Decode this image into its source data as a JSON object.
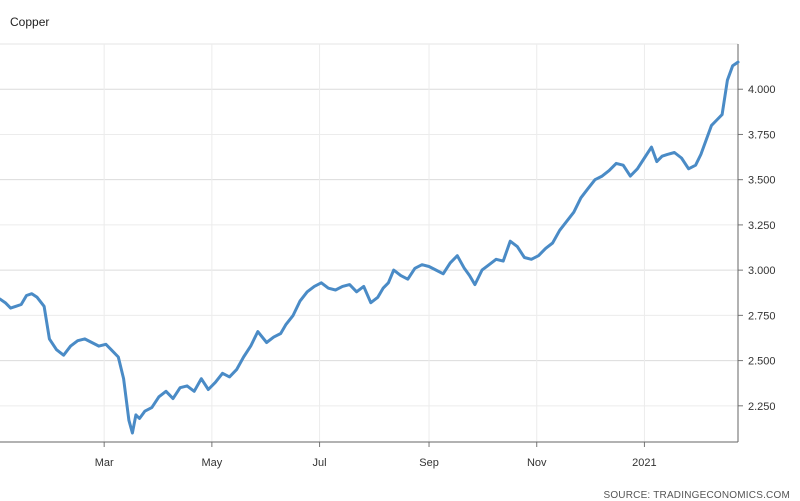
{
  "chart_data": {
    "type": "line",
    "title": "Copper",
    "source": "SOURCE: TRADINGECONOMICS.COM",
    "xlabel": "",
    "ylabel": "",
    "ylim": [
      2.05,
      4.25
    ],
    "yticks": [
      "2.250",
      "2.500",
      "2.750",
      "3.000",
      "3.250",
      "3.500",
      "3.750",
      "4.000"
    ],
    "x_tick_labels": [
      "Mar",
      "May",
      "Jul",
      "Sep",
      "Nov",
      "2021"
    ],
    "x_tick_dates": [
      "2020-03-01",
      "2020-05-01",
      "2020-07-01",
      "2020-09-01",
      "2020-11-01",
      "2021-01-01"
    ],
    "xlim": [
      "2020-01-02",
      "2021-02-23"
    ],
    "grid": true,
    "line_color": "#4a8bc6",
    "series": [
      {
        "x": [
          "2020-01-02",
          "2020-01-05",
          "2020-01-08",
          "2020-01-11",
          "2020-01-14",
          "2020-01-17",
          "2020-01-20",
          "2020-01-23",
          "2020-01-27",
          "2020-01-30",
          "2020-02-03",
          "2020-02-07",
          "2020-02-11",
          "2020-02-15",
          "2020-02-19",
          "2020-02-23",
          "2020-02-27",
          "2020-03-02",
          "2020-03-05",
          "2020-03-09",
          "2020-03-12",
          "2020-03-15",
          "2020-03-17",
          "2020-03-19",
          "2020-03-21",
          "2020-03-24",
          "2020-03-28",
          "2020-04-01",
          "2020-04-05",
          "2020-04-09",
          "2020-04-13",
          "2020-04-17",
          "2020-04-21",
          "2020-04-25",
          "2020-04-29",
          "2020-05-03",
          "2020-05-07",
          "2020-05-11",
          "2020-05-15",
          "2020-05-19",
          "2020-05-23",
          "2020-05-27",
          "2020-06-01",
          "2020-06-05",
          "2020-06-09",
          "2020-06-12",
          "2020-06-16",
          "2020-06-20",
          "2020-06-24",
          "2020-06-28",
          "2020-07-02",
          "2020-07-06",
          "2020-07-10",
          "2020-07-14",
          "2020-07-18",
          "2020-07-22",
          "2020-07-26",
          "2020-07-30",
          "2020-08-03",
          "2020-08-06",
          "2020-08-09",
          "2020-08-12",
          "2020-08-16",
          "2020-08-20",
          "2020-08-24",
          "2020-08-28",
          "2020-09-01",
          "2020-09-05",
          "2020-09-09",
          "2020-09-13",
          "2020-09-17",
          "2020-09-21",
          "2020-09-24",
          "2020-09-27",
          "2020-10-01",
          "2020-10-05",
          "2020-10-09",
          "2020-10-13",
          "2020-10-17",
          "2020-10-21",
          "2020-10-25",
          "2020-10-29",
          "2020-11-02",
          "2020-11-06",
          "2020-11-10",
          "2020-11-14",
          "2020-11-18",
          "2020-11-22",
          "2020-11-26",
          "2020-11-30",
          "2020-12-04",
          "2020-12-08",
          "2020-12-12",
          "2020-12-16",
          "2020-12-20",
          "2020-12-24",
          "2020-12-28",
          "2021-01-01",
          "2021-01-05",
          "2021-01-08",
          "2021-01-11",
          "2021-01-14",
          "2021-01-18",
          "2021-01-22",
          "2021-01-26",
          "2021-01-30",
          "2021-02-02",
          "2021-02-05",
          "2021-02-08",
          "2021-02-11",
          "2021-02-14",
          "2021-02-17",
          "2021-02-20",
          "2021-02-23"
        ],
        "y": [
          2.84,
          2.82,
          2.79,
          2.8,
          2.81,
          2.86,
          2.87,
          2.85,
          2.8,
          2.62,
          2.56,
          2.53,
          2.58,
          2.61,
          2.62,
          2.6,
          2.58,
          2.59,
          2.56,
          2.52,
          2.4,
          2.17,
          2.1,
          2.2,
          2.18,
          2.22,
          2.24,
          2.3,
          2.33,
          2.29,
          2.35,
          2.36,
          2.33,
          2.4,
          2.34,
          2.38,
          2.43,
          2.41,
          2.45,
          2.52,
          2.58,
          2.66,
          2.6,
          2.63,
          2.65,
          2.7,
          2.75,
          2.83,
          2.88,
          2.91,
          2.93,
          2.9,
          2.89,
          2.91,
          2.92,
          2.88,
          2.91,
          2.82,
          2.85,
          2.9,
          2.93,
          3.0,
          2.97,
          2.95,
          3.01,
          3.03,
          3.02,
          3.0,
          2.98,
          3.04,
          3.08,
          3.01,
          2.97,
          2.92,
          3.0,
          3.03,
          3.06,
          3.05,
          3.16,
          3.13,
          3.07,
          3.06,
          3.08,
          3.12,
          3.15,
          3.22,
          3.27,
          3.32,
          3.4,
          3.45,
          3.5,
          3.52,
          3.55,
          3.59,
          3.58,
          3.52,
          3.56,
          3.62,
          3.68,
          3.6,
          3.63,
          3.64,
          3.65,
          3.62,
          3.56,
          3.58,
          3.64,
          3.72,
          3.8,
          3.83,
          3.86,
          4.05,
          4.13,
          4.15
        ]
      }
    ]
  }
}
